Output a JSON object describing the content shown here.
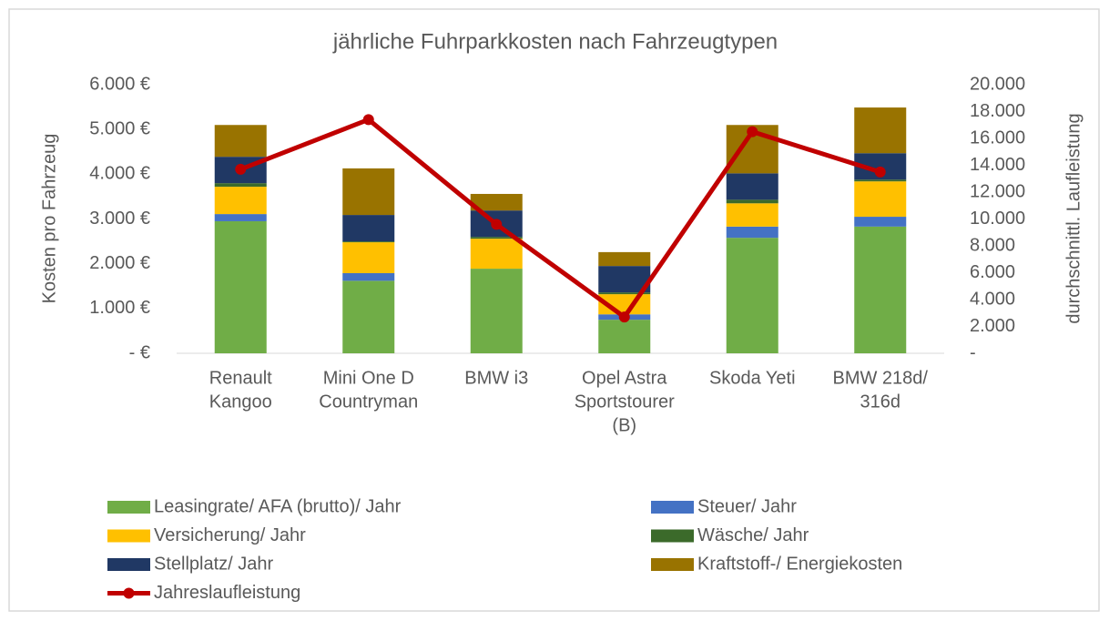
{
  "chart_data": {
    "type": "bar",
    "stacked": true,
    "title": "jährliche Fuhrparkkosten nach Fahrzeugtypen",
    "ylabel": "Kosten pro Fahrzeug",
    "y2label": "durchschnittl. Laufleistung",
    "categories": [
      [
        "Renault",
        "Kangoo"
      ],
      [
        "Mini One D",
        "Countryman"
      ],
      [
        "BMW i3"
      ],
      [
        "Opel Astra",
        "Sportstourer",
        "(B)"
      ],
      [
        "Skoda Yeti"
      ],
      [
        "BMW 218d/",
        "316d"
      ]
    ],
    "series": [
      {
        "name": "Leasingrate/ AFA (brutto)/ Jahr",
        "color": "#70ad47",
        "values": [
          2950,
          1620,
          1890,
          750,
          2580,
          2830
        ]
      },
      {
        "name": "Steuer/ Jahr",
        "color": "#4472c4",
        "values": [
          160,
          170,
          0,
          120,
          250,
          220
        ]
      },
      {
        "name": "Versicherung/ Jahr",
        "color": "#ffc000",
        "values": [
          610,
          690,
          670,
          450,
          520,
          790
        ]
      },
      {
        "name": "Wäsche/ Jahr",
        "color": "#3b6a2a",
        "values": [
          80,
          20,
          40,
          40,
          80,
          40
        ]
      },
      {
        "name": "Stellplatz/ Jahr",
        "color": "#203864",
        "values": [
          590,
          590,
          590,
          590,
          590,
          590
        ]
      },
      {
        "name": "Kraftstoff-/ Energiekosten",
        "color": "#997300",
        "values": [
          710,
          1040,
          370,
          310,
          1080,
          1020
        ]
      },
      {
        "name": "Jahreslaufleistung",
        "color": "#c00000",
        "type": "line",
        "axis": "y2",
        "values": [
          13700,
          17400,
          9600,
          2700,
          16500,
          13500
        ]
      }
    ],
    "ylim": [
      0,
      6000
    ],
    "yticks": [
      {
        "value": 0,
        "label": "-   €"
      },
      {
        "value": 1000,
        "label": "1.000 €"
      },
      {
        "value": 2000,
        "label": "2.000 €"
      },
      {
        "value": 3000,
        "label": "3.000 €"
      },
      {
        "value": 4000,
        "label": "4.000 €"
      },
      {
        "value": 5000,
        "label": "5.000 €"
      },
      {
        "value": 6000,
        "label": "6.000 €"
      }
    ],
    "y2lim": [
      0,
      20000
    ],
    "y2ticks": [
      {
        "value": 0,
        "label": "-"
      },
      {
        "value": 2000,
        "label": "2.000"
      },
      {
        "value": 4000,
        "label": "4.000"
      },
      {
        "value": 6000,
        "label": "6.000"
      },
      {
        "value": 8000,
        "label": "8.000"
      },
      {
        "value": 10000,
        "label": "10.000"
      },
      {
        "value": 12000,
        "label": "12.000"
      },
      {
        "value": 14000,
        "label": "14.000"
      },
      {
        "value": 16000,
        "label": "16.000"
      },
      {
        "value": 18000,
        "label": "18.000"
      },
      {
        "value": 20000,
        "label": "20.000"
      }
    ],
    "legend": "bottom"
  }
}
